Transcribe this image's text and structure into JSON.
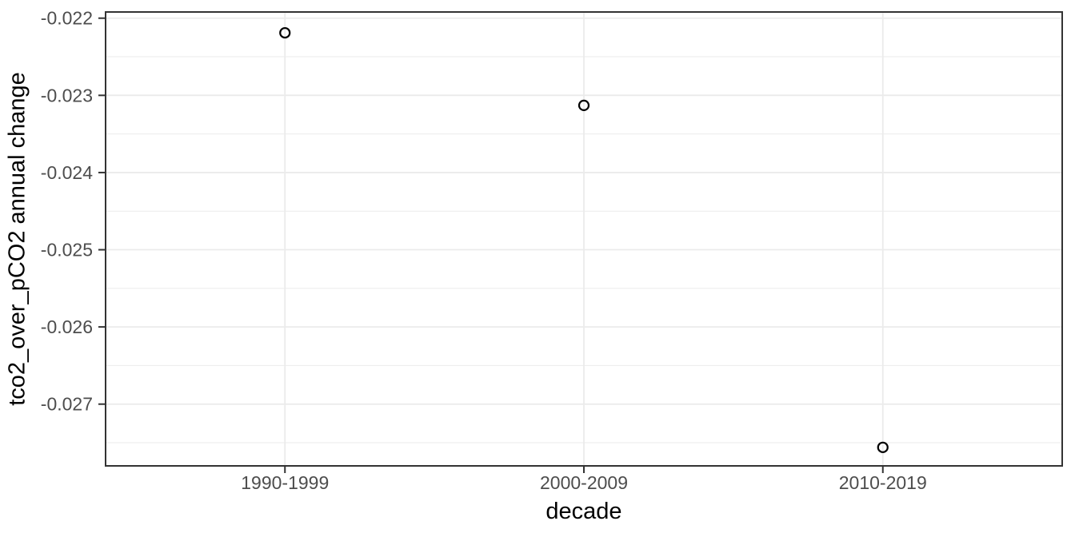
{
  "chart_data": {
    "type": "scatter",
    "title": "",
    "xlabel": "decade",
    "ylabel": "tco2_over_pCO2 annual change",
    "categories": [
      "1990-1999",
      "2000-2009",
      "2010-2019"
    ],
    "series": [
      {
        "name": "tco2_over_pCO2 annual change",
        "values": [
          -0.02219,
          -0.02313,
          -0.02756
        ]
      }
    ],
    "ylim": [
      -0.0278,
      -0.02192
    ],
    "yticks": {
      "major": [
        -0.022,
        -0.023,
        -0.024,
        -0.025,
        -0.026,
        -0.027
      ],
      "labels": [
        "-0.022",
        "-0.023",
        "-0.024",
        "-0.025",
        "-0.026",
        "-0.027"
      ],
      "minor": [
        -0.0225,
        -0.0235,
        -0.0245,
        -0.0255,
        -0.0265,
        -0.0275
      ]
    },
    "grid": "major-and-minor",
    "legend": false,
    "marker": {
      "shape": "open-circle",
      "radius": 6,
      "stroke": "#000000",
      "stroke_width": 2.2
    },
    "colors": {
      "background": "#ffffff",
      "panel_background": "#ffffff",
      "grid": "#ebebeb",
      "panel_border": "#333333",
      "tick": "#333333",
      "tick_label": "#4d4d4d",
      "axis_title": "#000000"
    },
    "font_sizes": {
      "tick_label": 23,
      "axis_title": 29
    }
  }
}
